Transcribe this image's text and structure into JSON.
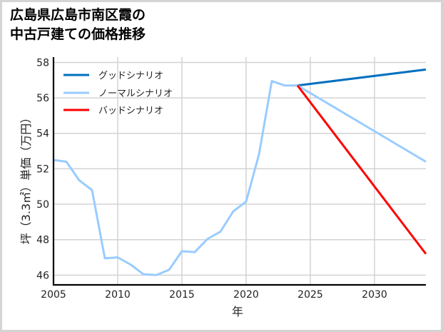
{
  "title_lines": [
    "広島県広島市南区霞の",
    "中古戸建ての価格推移"
  ],
  "chart_data": {
    "type": "line",
    "title": "広島県広島市南区霞の中古戸建ての価格推移",
    "xlabel": "年",
    "ylabel": "坪（3.3㎡）単価（万円）",
    "xlim": [
      2005,
      2034
    ],
    "ylim": [
      45.45,
      58.3
    ],
    "xticks": [
      2005,
      2010,
      2015,
      2020,
      2025,
      2030
    ],
    "yticks": [
      46,
      48,
      50,
      52,
      54,
      56,
      58
    ],
    "grid": true,
    "legend_position": "upper left",
    "series": [
      {
        "name": "グッドシナリオ",
        "color": "#0070C0",
        "x": [
          2024,
          2034
        ],
        "values": [
          56.7,
          57.6
        ]
      },
      {
        "name": "ノーマルシナリオ",
        "color": "#99CCFF",
        "x": [
          2005,
          2006,
          2007,
          2008,
          2009,
          2010,
          2011,
          2012,
          2013,
          2014,
          2015,
          2016,
          2017,
          2018,
          2019,
          2020,
          2021,
          2022,
          2023,
          2024,
          2034
        ],
        "values": [
          52.5,
          52.4,
          51.35,
          50.8,
          46.95,
          47.0,
          46.6,
          46.05,
          46.0,
          46.3,
          47.35,
          47.3,
          48.05,
          48.45,
          49.6,
          50.15,
          52.8,
          56.95,
          56.7,
          56.7,
          52.4
        ]
      },
      {
        "name": "バッドシナリオ",
        "color": "#FF0000",
        "x": [
          2024,
          2034
        ],
        "values": [
          56.7,
          47.2
        ]
      }
    ]
  }
}
